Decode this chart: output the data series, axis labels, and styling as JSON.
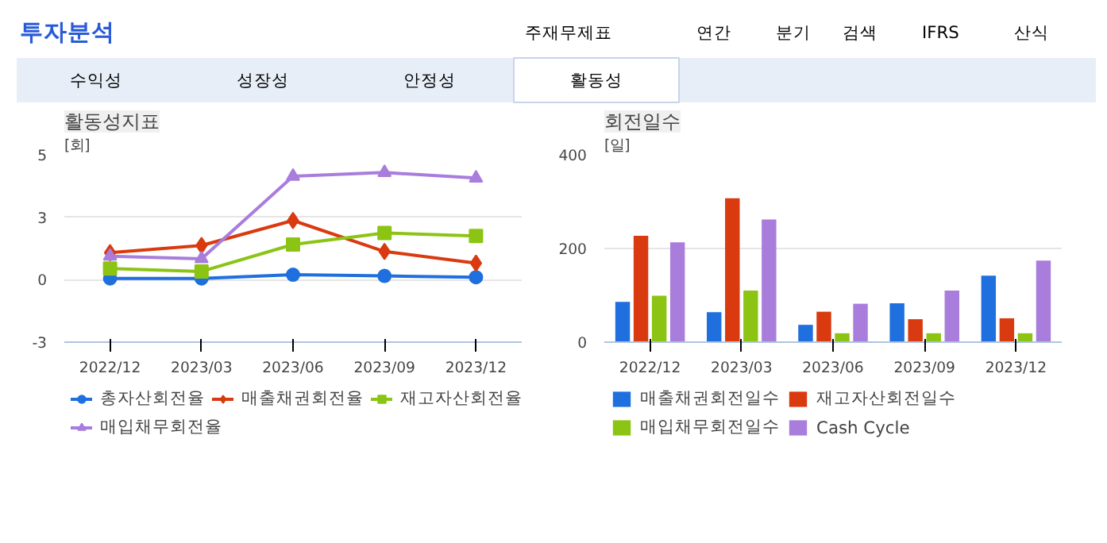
{
  "chart_data": [
    {
      "type": "line",
      "title": "활동성지표",
      "ylabel": "[회]",
      "annotations": [
        "투자분석",
        "주재무제표",
        "연간",
        "분기",
        "검색",
        "IFRS",
        "산식",
        "수익성",
        "성장성",
        "안정성",
        "활동성"
      ],
      "categories": [
        "2022/12",
        "2023/03",
        "2023/06",
        "2023/09",
        "2023/12"
      ],
      "ylim": [
        -2.5,
        5
      ],
      "yticks": [
        {
          "value": -2.5,
          "label": "-3"
        },
        0,
        {
          "value": 2.5,
          "label": "3"
        },
        5
      ],
      "grid": "y",
      "legend": "bottom",
      "series": [
        {
          "name": "총자산회전율",
          "color": "#1f6fde",
          "marker": "circle",
          "values": [
            0.05,
            0.05,
            0.2,
            0.15,
            0.1
          ]
        },
        {
          "name": "매출채권회전율",
          "color": "#d93a10",
          "marker": "diamond",
          "values": [
            1.08,
            1.37,
            2.37,
            1.13,
            0.66
          ]
        },
        {
          "name": "재고자산회전율",
          "color": "#8cc414",
          "marker": "square",
          "values": [
            0.45,
            0.33,
            1.41,
            1.87,
            1.75
          ]
        },
        {
          "name": "매입채무회전율",
          "color": "#a87ddc",
          "marker": "triangle",
          "values": [
            0.94,
            0.84,
            4.14,
            4.29,
            4.07
          ]
        }
      ]
    },
    {
      "type": "bar",
      "title": "회전일수",
      "ylabel": "[일]",
      "categories": [
        "2022/12",
        "2023/03",
        "2023/06",
        "2023/09",
        "2023/12"
      ],
      "ylim": [
        0,
        400
      ],
      "yticks": [
        0,
        200,
        400
      ],
      "grid": "y",
      "legend": "bottom",
      "series": [
        {
          "name": "매출채권회전일수",
          "color": "#1f6fde",
          "values": [
            86,
            64,
            37,
            83,
            142
          ]
        },
        {
          "name": "재고자산회전일수",
          "color": "#d93a10",
          "values": [
            227,
            307,
            65,
            49,
            51
          ]
        },
        {
          "name": "매입채무회전일수",
          "color": "#8cc414",
          "values": [
            99,
            110,
            19,
            19,
            19
          ]
        },
        {
          "name": "Cash Cycle",
          "color": "#a87ddc",
          "values": [
            213,
            262,
            82,
            110,
            174
          ]
        }
      ]
    }
  ]
}
